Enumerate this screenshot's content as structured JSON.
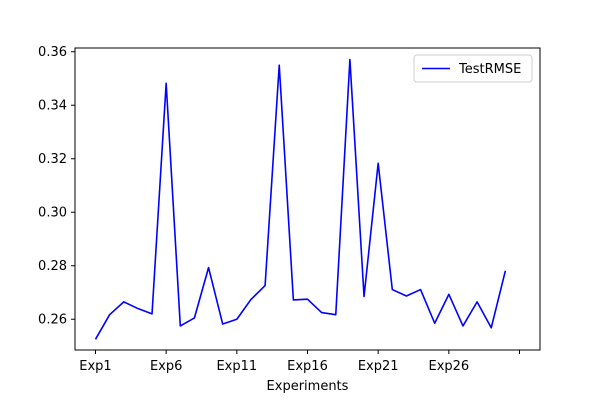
{
  "chart_data": {
    "type": "line",
    "title": "",
    "xlabel": "Experiments",
    "ylabel": "",
    "x": [
      1,
      2,
      3,
      4,
      5,
      6,
      7,
      8,
      9,
      10,
      11,
      12,
      13,
      14,
      15,
      16,
      17,
      18,
      19,
      20,
      21,
      22,
      23,
      24,
      25,
      26,
      27,
      28,
      29,
      30
    ],
    "xtick_values": [
      1,
      6,
      11,
      16,
      21,
      26,
      31
    ],
    "xtick_labels": [
      "Exp1",
      "Exp6",
      "Exp11",
      "Exp16",
      "Exp21",
      "Exp26",
      ""
    ],
    "xlim": [
      -0.45,
      32.45
    ],
    "ylim": [
      0.2485,
      0.3614
    ],
    "yticks": [
      0.26,
      0.28,
      0.3,
      0.32,
      0.34,
      0.36
    ],
    "ytick_labels": [
      "0.26",
      "0.28",
      "0.30",
      "0.32",
      "0.34",
      "0.36"
    ],
    "grid": false,
    "legend_position": "top-right",
    "series": [
      {
        "name": "TestRMSE",
        "color": "#0000ff",
        "values": [
          0.2525,
          0.2617,
          0.2665,
          0.264,
          0.262,
          0.3482,
          0.2575,
          0.2605,
          0.2793,
          0.2582,
          0.26,
          0.2674,
          0.2726,
          0.355,
          0.2672,
          0.2675,
          0.2625,
          0.2617,
          0.3571,
          0.2685,
          0.3183,
          0.2711,
          0.2687,
          0.2711,
          0.2585,
          0.2693,
          0.2575,
          0.2665,
          0.2568,
          0.2781
        ]
      }
    ]
  }
}
